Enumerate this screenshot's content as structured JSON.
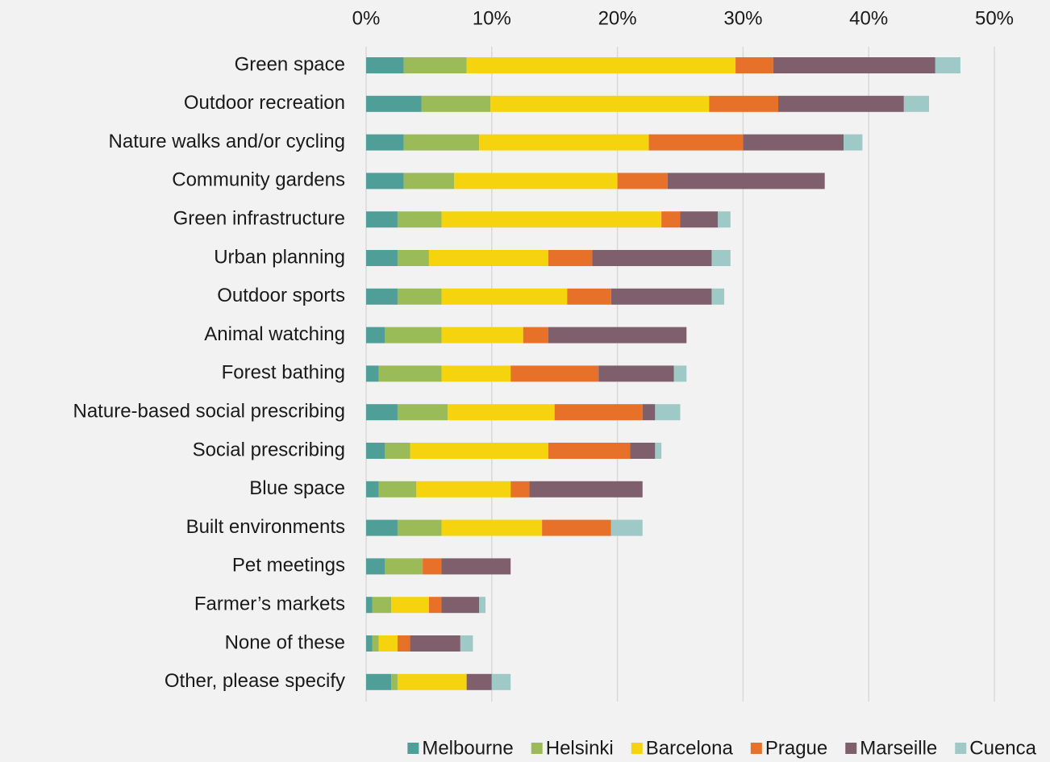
{
  "chart_data": {
    "type": "stacked_barh",
    "categories": [
      "Green space",
      "Outdoor recreation",
      "Nature walks and/or cycling",
      "Community gardens",
      "Green infrastructure",
      "Urban planning",
      "Outdoor sports",
      "Animal watching",
      "Forest bathing",
      "Nature-based social prescribing",
      "Social prescribing",
      "Blue space",
      "Built environments",
      "Pet meetings",
      "Farmer’s markets",
      "None of these",
      "Other, please specify"
    ],
    "series": [
      {
        "name": "Melbourne",
        "color": "#4f9e98",
        "values": [
          3,
          4.4,
          3,
          3,
          2.5,
          2.5,
          2.5,
          1.5,
          1,
          2.5,
          1.5,
          1,
          2.5,
          1.5,
          0.5,
          0.5,
          2
        ]
      },
      {
        "name": "Helsinki",
        "color": "#9bbb59",
        "values": [
          5,
          5.5,
          6,
          4,
          3.5,
          2.5,
          3.5,
          4.5,
          5,
          4,
          2,
          3,
          3.5,
          3,
          1.5,
          0.5,
          0.5
        ]
      },
      {
        "name": "Barcelona",
        "color": "#f5d40f",
        "values": [
          21.4,
          17.4,
          13.5,
          13,
          17.5,
          9.5,
          10,
          6.5,
          5.5,
          8.5,
          11,
          7.5,
          8,
          0,
          3,
          1.5,
          5.5
        ]
      },
      {
        "name": "Prague",
        "color": "#e8712a",
        "values": [
          3,
          5.5,
          7.5,
          4,
          1.5,
          3.5,
          3.5,
          2,
          7,
          7,
          6.5,
          1.5,
          5.5,
          1.5,
          1,
          1,
          0
        ]
      },
      {
        "name": "Marseille",
        "color": "#7f5f6c",
        "values": [
          12.9,
          10,
          8,
          12.5,
          3,
          9.5,
          8,
          11,
          6,
          1,
          2,
          9,
          0,
          5.5,
          3,
          4,
          2
        ]
      },
      {
        "name": "Cuenca",
        "color": "#9ec9c6",
        "values": [
          2,
          2,
          1.5,
          0,
          1,
          1.5,
          1,
          0,
          1,
          2,
          0.5,
          0,
          2.5,
          0,
          0.5,
          1,
          1.5
        ]
      }
    ],
    "xlim": [
      0,
      50
    ],
    "xticks": [
      {
        "value": 0,
        "label": "0%"
      },
      {
        "value": 10,
        "label": "10%"
      },
      {
        "value": 20,
        "label": "20%"
      },
      {
        "value": 30,
        "label": "30%"
      },
      {
        "value": 40,
        "label": "40%"
      },
      {
        "value": 50,
        "label": "50%"
      }
    ],
    "grid": true,
    "legend": "bottom"
  }
}
